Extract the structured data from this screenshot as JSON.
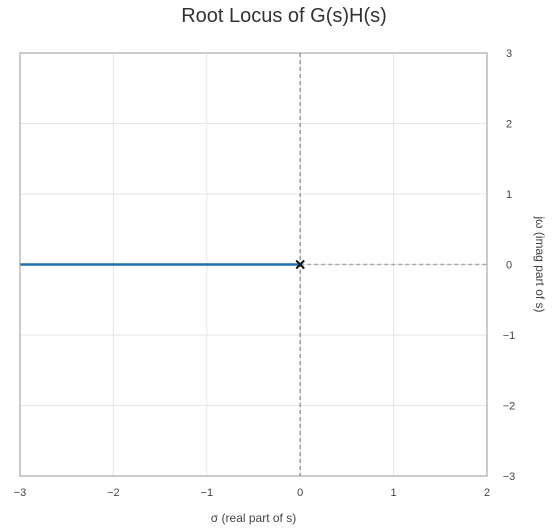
{
  "chart_data": {
    "type": "line",
    "title": "Root Locus of G(s)H(s)",
    "xlabel": "σ (real part of s)",
    "ylabel": "jω (imag part of s)",
    "xlim": [
      -3,
      2
    ],
    "ylim": [
      -3,
      3
    ],
    "x_ticks": [
      -3,
      -2,
      -1,
      0,
      1,
      2
    ],
    "y_ticks": [
      -3,
      -2,
      -1,
      0,
      1,
      2,
      3
    ],
    "x_tick_labels": [
      "−3",
      "−2",
      "−1",
      "0",
      "1",
      "2"
    ],
    "y_tick_labels": [
      "−3",
      "−2",
      "−1",
      "0",
      "1",
      "2",
      "3"
    ],
    "grid": true,
    "y_axis_side": "right",
    "series": [
      {
        "kind": "locus",
        "color": "#1f6fb4",
        "x": [
          -3,
          0
        ],
        "y": [
          0,
          0
        ]
      }
    ],
    "poles": [
      {
        "x": 0,
        "y": 0
      }
    ],
    "reference_lines": [
      {
        "orientation": "vertical",
        "value": 0,
        "style": "dashed",
        "color": "#999999"
      },
      {
        "orientation": "horizontal",
        "value": 0,
        "from": 0,
        "to": 2,
        "style": "dashed",
        "color": "#aaaaaa"
      }
    ],
    "colors": {
      "grid": "#e6e6e6",
      "frame": "#999999",
      "locus": "#1f6fb4",
      "pole": "#111111"
    }
  }
}
